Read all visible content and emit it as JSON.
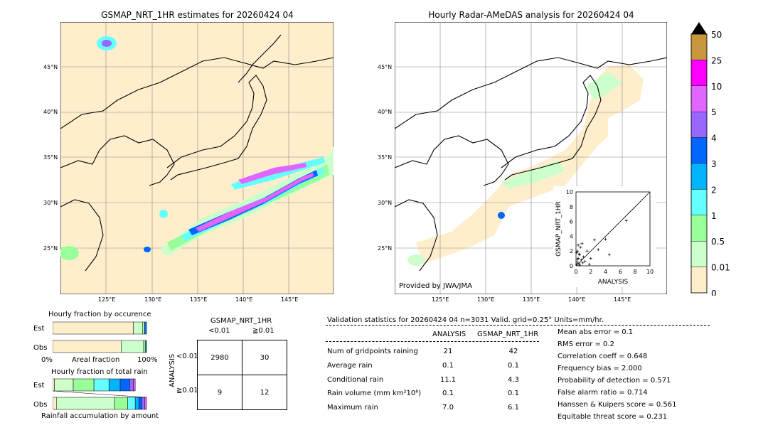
{
  "left_map": {
    "title": "GSMAP_NRT_1HR estimates for 20260424 04",
    "lat_labels": [
      "45°N",
      "40°N",
      "35°N",
      "30°N",
      "25°N"
    ],
    "lon_labels": [
      "125°E",
      "130°E",
      "135°E",
      "140°E",
      "145°E"
    ]
  },
  "right_map": {
    "title": "Hourly Radar-AMeDAS analysis for 20260424 04",
    "lat_labels": [
      "45°N",
      "40°N",
      "35°N",
      "30°N",
      "25°N"
    ],
    "lon_labels": [
      "125°E",
      "130°E",
      "135°E",
      "140°E",
      "145°E"
    ],
    "credit": "Provided by JWA/JMA"
  },
  "colorbar": {
    "labels": [
      "50",
      "25",
      "10",
      "5",
      "4",
      "3",
      "2",
      "1",
      "0.5",
      "0.01",
      "0"
    ],
    "colors": [
      "#c8963c",
      "#ff00ff",
      "#e066ff",
      "#9966ff",
      "#0066ff",
      "#00b4ff",
      "#66ffff",
      "#99ff99",
      "#ccffcc",
      "#ffeecc"
    ]
  },
  "chart_data": [
    {
      "type": "scatter",
      "title": "",
      "xlabel": "ANALYSIS",
      "ylabel": "GSMAP_NRT_1HR",
      "xlim": [
        0,
        10
      ],
      "ylim": [
        0,
        10
      ],
      "ticks": [
        "0",
        "2",
        "4",
        "6",
        "8",
        "10"
      ],
      "points": [
        [
          0.1,
          0.2
        ],
        [
          0.2,
          0.5
        ],
        [
          0.3,
          1.0
        ],
        [
          0.4,
          0.3
        ],
        [
          0.5,
          1.5
        ],
        [
          0.6,
          2.5
        ],
        [
          0.7,
          0.8
        ],
        [
          0.8,
          3.0
        ],
        [
          1.0,
          1.2
        ],
        [
          1.2,
          0.6
        ],
        [
          1.5,
          2.0
        ],
        [
          2.0,
          1.0
        ],
        [
          2.5,
          3.5
        ],
        [
          3.0,
          2.2
        ],
        [
          4.0,
          3.6
        ],
        [
          4.5,
          1.5
        ],
        [
          6.8,
          6.1
        ],
        [
          0.2,
          2.0
        ],
        [
          0.3,
          2.8
        ],
        [
          0.1,
          1.8
        ],
        [
          0.4,
          1.6
        ],
        [
          0.2,
          0.9
        ],
        [
          0.9,
          0.4
        ],
        [
          1.8,
          0.2
        ],
        [
          0.5,
          0.1
        ]
      ]
    },
    {
      "type": "bar",
      "title": "Hourly fraction by occurence",
      "categories": [
        "Est",
        "Obs"
      ],
      "xlabel": "Areal fraction",
      "xtick_left": "0%",
      "xtick_right": "100%",
      "series": [
        {
          "values": [
            0.86,
            0.73
          ],
          "color": "#ffeecc"
        },
        {
          "values": [
            0.1,
            0.24
          ],
          "color": "#ccffcc"
        },
        {
          "values": [
            0.02,
            0.02
          ],
          "color": "#99ff99"
        },
        {
          "values": [
            0.02,
            0.01
          ],
          "color": "#0066ff"
        }
      ]
    },
    {
      "type": "bar",
      "title": "Hourly fraction of total rain",
      "categories": [
        "Est",
        "Obs"
      ],
      "xlabel": "Rainfall accumulation by amount",
      "segments": [
        {
          "colors": [
            "#ffeecc",
            "#ccffcc",
            "#99ff99",
            "#66ffff",
            "#00b4ff",
            "#0066ff",
            "#9966ff",
            "#e066ff"
          ],
          "widths": [
            0.02,
            0.2,
            0.22,
            0.16,
            0.12,
            0.1,
            0.04,
            0.02
          ]
        },
        {
          "colors": [
            "#ffeecc",
            "#ccffcc",
            "#99ff99",
            "#66ffff",
            "#00b4ff",
            "#0066ff",
            "#9966ff",
            "#e066ff"
          ],
          "widths": [
            0.04,
            0.62,
            0.14,
            0.08,
            0.04,
            0.03,
            0.03,
            0.02
          ]
        }
      ]
    }
  ],
  "contingency": {
    "title": "GSMAP_NRT_1HR",
    "col_labels": [
      "<0.01",
      "≧0.01"
    ],
    "row_labels": [
      "<0.01",
      "≧0.01"
    ],
    "side_label": "ANALYSIS",
    "cells": [
      [
        "2980",
        "30"
      ],
      [
        "9",
        "12"
      ]
    ]
  },
  "validation": {
    "header": "Validation statistics for 20260424 04  n=3031 Valid. grid=0.25° Units=mm/hr.",
    "col1": "ANALYSIS",
    "col2": "GSMAP_NRT_1HR",
    "rows": [
      {
        "label": "Num of gridpoints raining",
        "a": "21",
        "b": "42"
      },
      {
        "label": "Average rain",
        "a": "0.1",
        "b": "0.1"
      },
      {
        "label": "Conditional rain",
        "a": "11.1",
        "b": "4.3"
      },
      {
        "label": "Rain volume (mm km²10⁶)",
        "a": "0.1",
        "b": "0.1"
      },
      {
        "label": "Maximum rain",
        "a": "7.0",
        "b": "6.1"
      }
    ],
    "scores": [
      "Mean abs error =    0.1",
      "RMS error =    0.2",
      "Correlation coeff =  0.648",
      "Frequency bias =  2.000",
      "Probability of detection =  0.571",
      "False alarm ratio =  0.714",
      "Hanssen & Kuipers score =  0.561",
      "Equitable threat score =  0.231"
    ]
  }
}
